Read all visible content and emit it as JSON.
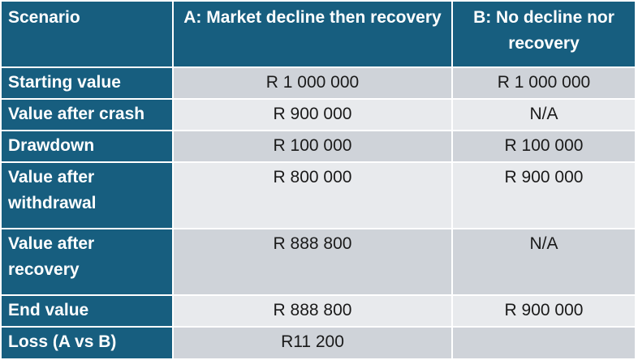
{
  "header": {
    "col1": "Scenario",
    "col2": "A: Market decline then recovery",
    "col3": "B: No decline nor recovery"
  },
  "rows": [
    {
      "label": "Starting value",
      "a": "R 1 000 000",
      "b": "R 1 000 000"
    },
    {
      "label": "Value after crash",
      "a": "R 900 000",
      "b": "N/A"
    },
    {
      "label": "Drawdown",
      "a": "R 100 000",
      "b": "R 100 000"
    },
    {
      "label": "Value after withdrawal",
      "a": "R 800 000",
      "b": "R 900 000"
    },
    {
      "label": "Value after recovery",
      "a": "R 888 800",
      "b": "N/A"
    },
    {
      "label": "End value",
      "a": "R 888 800",
      "b": "R 900 000"
    },
    {
      "label": "Loss (A vs B)",
      "a": "R11 200",
      "b": ""
    }
  ],
  "colors": {
    "header_bg": "#175e7f",
    "row_dark": "#cfd3d9",
    "row_light": "#e8eaed"
  }
}
